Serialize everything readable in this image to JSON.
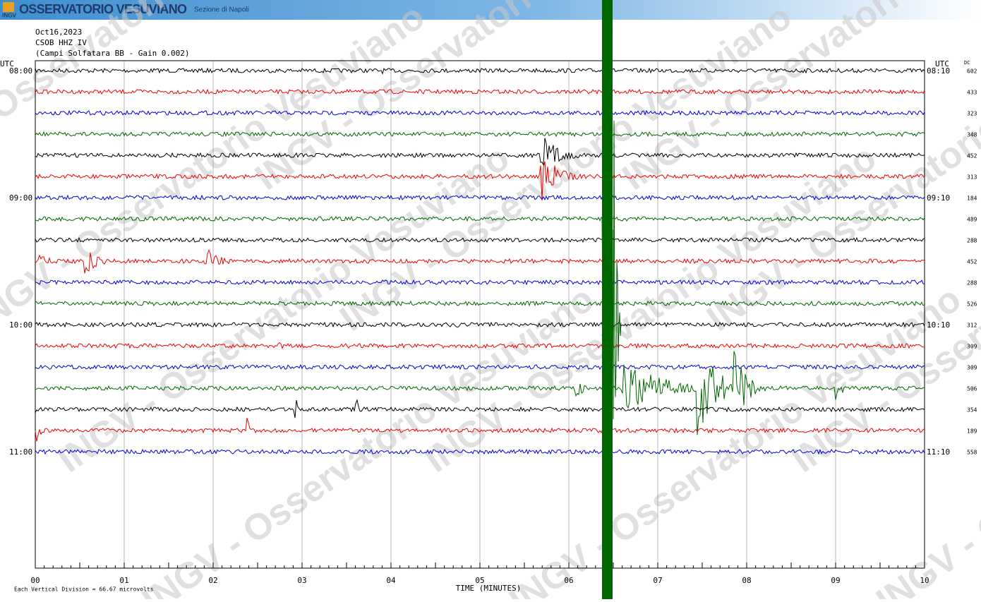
{
  "header": {
    "logo": "INGV",
    "title": "OSSERVATORIO VESUVIANO",
    "subtitle": "Sezione di Napoli"
  },
  "info": [
    "Oct16,2023",
    "CSOB HHZ IV",
    "(Campi Solfatara BB - Gain 0.002)"
  ],
  "left_axis": {
    "unit": "UTC",
    "hours": [
      "08:00",
      "09:00",
      "10:00",
      "11:00"
    ]
  },
  "right_axis": {
    "unit": "UTC",
    "hours": [
      "08:10",
      "09:10",
      "10:10",
      "11:10"
    ]
  },
  "dc_header": "DC",
  "dc_values": [
    "602",
    "433",
    "323",
    "348",
    "452",
    "313",
    "184",
    "489",
    "288",
    "452",
    "288",
    "526",
    "312",
    "309",
    "309",
    "506",
    "354",
    "189",
    "558"
  ],
  "x_labels": [
    "00",
    "01",
    "02",
    "03",
    "04",
    "05",
    "06",
    "07",
    "08",
    "09",
    "10"
  ],
  "x_axis_title": "TIME (MINUTES)",
  "footer": "Each Vertical Division =   66.67 microvolts",
  "watermark": "INGV - Osservatorio Vesuviano"
}
